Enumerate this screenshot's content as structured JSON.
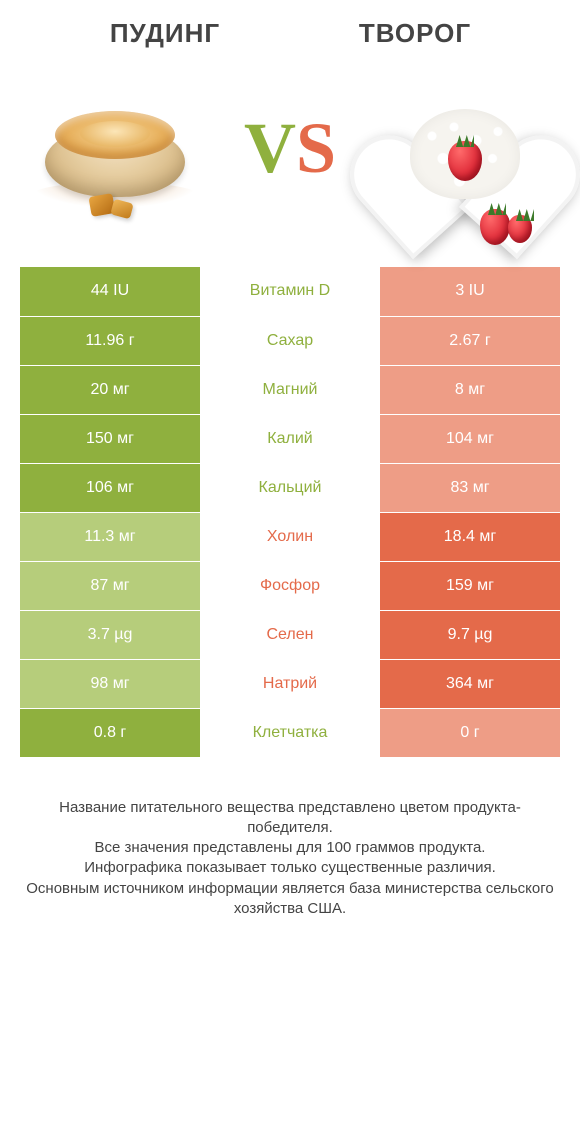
{
  "header": {
    "left_title": "ПУДИНГ",
    "right_title": "ТВОРОГ",
    "vs_v": "V",
    "vs_s": "S"
  },
  "colors": {
    "left_win": "#8fb03e",
    "left_lose": "#b6cd7b",
    "right_win": "#e46a4a",
    "right_lose": "#ee9d86",
    "label_left_text": "#8fb03e",
    "label_right_text": "#e46a4a"
  },
  "rows": [
    {
      "label": "Витамин D",
      "left": "44 IU",
      "right": "3 IU",
      "winner": "left"
    },
    {
      "label": "Сахар",
      "left": "11.96 г",
      "right": "2.67 г",
      "winner": "left"
    },
    {
      "label": "Магний",
      "left": "20 мг",
      "right": "8 мг",
      "winner": "left"
    },
    {
      "label": "Калий",
      "left": "150 мг",
      "right": "104 мг",
      "winner": "left"
    },
    {
      "label": "Кальций",
      "left": "106 мг",
      "right": "83 мг",
      "winner": "left"
    },
    {
      "label": "Холин",
      "left": "11.3 мг",
      "right": "18.4 мг",
      "winner": "right"
    },
    {
      "label": "Фосфор",
      "left": "87 мг",
      "right": "159 мг",
      "winner": "right"
    },
    {
      "label": "Селен",
      "left": "3.7 µg",
      "right": "9.7 µg",
      "winner": "right"
    },
    {
      "label": "Натрий",
      "left": "98 мг",
      "right": "364 мг",
      "winner": "right"
    },
    {
      "label": "Клетчатка",
      "left": "0.8 г",
      "right": "0 г",
      "winner": "left"
    }
  ],
  "footnote_lines": [
    "Название питательного вещества представлено цветом продукта-победителя.",
    "Все значения представлены для 100 граммов продукта.",
    "Инфографика показывает только существенные различия.",
    "Основным источником информации является база министерства сельского хозяйства США."
  ]
}
